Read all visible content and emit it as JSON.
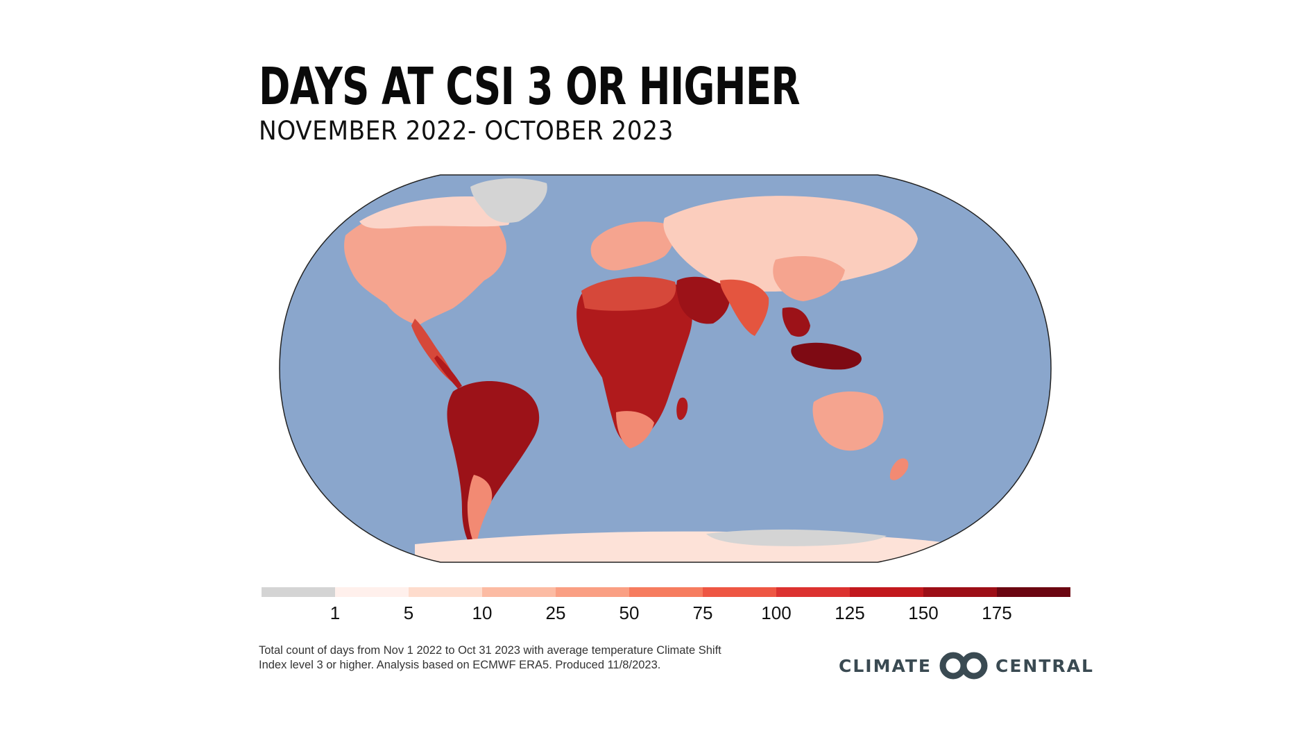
{
  "title": "DAYS AT CSI 3 OR HIGHER",
  "subtitle": "NOVEMBER 2022- OCTOBER 2023",
  "legend": {
    "colors": [
      "#d4d4d4",
      "#fff0ec",
      "#fedccd",
      "#fcbba3",
      "#fa9f83",
      "#f67c5f",
      "#ee5643",
      "#dc3230",
      "#c2181d",
      "#9c0e16",
      "#6b0611"
    ],
    "ticks": [
      "1",
      "5",
      "10",
      "25",
      "50",
      "75",
      "100",
      "125",
      "150",
      "175"
    ]
  },
  "map": {
    "ocean_color": "#8aa6cc",
    "no_data_color": "#d4d4d4"
  },
  "footnote": "Total count of days from Nov 1 2022 to Oct 31 2023 with average temperature Climate Shift Index level 3 or higher. Analysis based on ECMWF ERA5. Produced 11/8/2023.",
  "logo": {
    "left_text": "CLIMATE",
    "right_text": "CENTRAL",
    "icon": "climate-central-rings-icon"
  }
}
